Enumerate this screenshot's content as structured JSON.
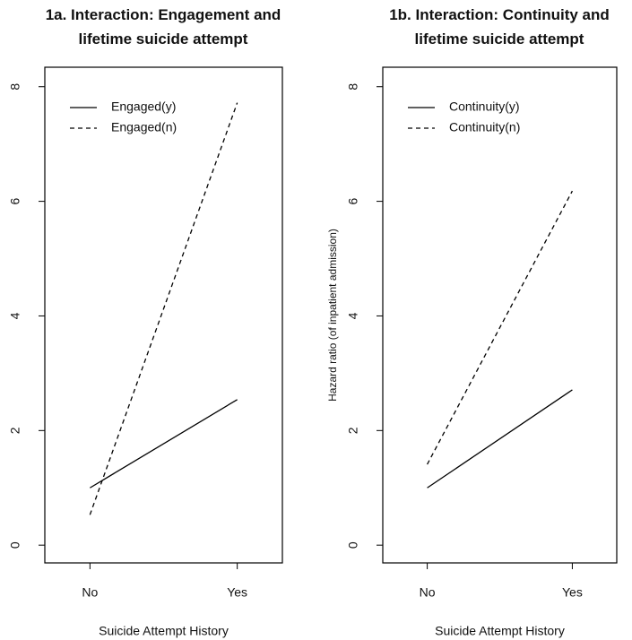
{
  "chart_data": [
    {
      "type": "line",
      "title": "1a. Interaction: Engagement and lifetime suicide attempt",
      "x_label": "Suicide Attempt History",
      "categories": [
        "No",
        "Yes"
      ],
      "series": [
        {
          "name": "Engaged(y)",
          "color": "#000000",
          "linestyle": "solid",
          "values": [
            1.0,
            2.54
          ]
        },
        {
          "name": "Engaged(n)",
          "color": "#000000",
          "linestyle": "dashed",
          "values": [
            0.53,
            7.72
          ]
        }
      ],
      "ylim": [
        -0.31,
        8.34
      ],
      "yticks": [
        0,
        2,
        4,
        6,
        8
      ],
      "legend": "top-left"
    },
    {
      "type": "line",
      "title": "1b. Interaction: Continuity and lifetime suicide attempt",
      "x_label": "Suicide Attempt History",
      "y_label": "Hazard ratio (of inpatient admission)",
      "categories": [
        "No",
        "Yes"
      ],
      "series": [
        {
          "name": "Continuity(y)",
          "color": "#000000",
          "linestyle": "solid",
          "values": [
            1.0,
            2.71
          ]
        },
        {
          "name": "Continuity(n)",
          "color": "#000000",
          "linestyle": "dashed",
          "values": [
            1.41,
            6.18
          ]
        }
      ],
      "ylim": [
        -0.31,
        8.34
      ],
      "yticks": [
        0,
        2,
        4,
        6,
        8
      ],
      "legend": "top-left"
    }
  ]
}
